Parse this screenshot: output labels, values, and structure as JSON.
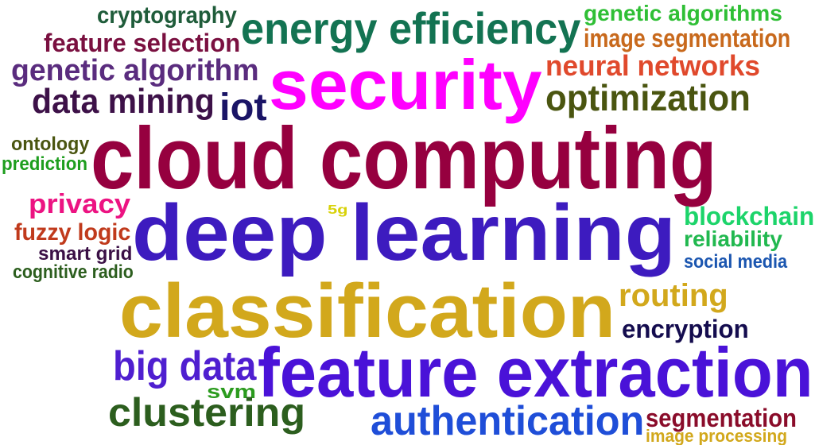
{
  "words": [
    {
      "text": "cryptography",
      "color": "#1f5c3a"
    },
    {
      "text": "energy efficiency",
      "color": "#137352"
    },
    {
      "text": "genetic algorithms",
      "color": "#2fbf35"
    },
    {
      "text": "feature selection",
      "color": "#7a1040"
    },
    {
      "text": "image segmentation",
      "color": "#c8691c"
    },
    {
      "text": "genetic algorithm",
      "color": "#5a2c7e"
    },
    {
      "text": "security",
      "color": "#ff00ff"
    },
    {
      "text": "neural networks",
      "color": "#e0492c"
    },
    {
      "text": "data mining",
      "color": "#3d1148"
    },
    {
      "text": "iot",
      "color": "#1a1466"
    },
    {
      "text": "optimization",
      "color": "#4a5510"
    },
    {
      "text": "ontology",
      "color": "#4a5510"
    },
    {
      "text": "cloud computing",
      "color": "#96003f"
    },
    {
      "text": "prediction",
      "color": "#1e9e1e"
    },
    {
      "text": "privacy",
      "color": "#ec1382"
    },
    {
      "text": "5g",
      "color": "#d8d20a"
    },
    {
      "text": "deep learning",
      "color": "#3d1bbf"
    },
    {
      "text": "blockchain",
      "color": "#1cd46a"
    },
    {
      "text": "fuzzy logic",
      "color": "#c03a1c"
    },
    {
      "text": "reliability",
      "color": "#21b84f"
    },
    {
      "text": "smart grid",
      "color": "#3b1046"
    },
    {
      "text": "social media",
      "color": "#1b56b0"
    },
    {
      "text": "cognitive radio",
      "color": "#2c5e1e"
    },
    {
      "text": "classification",
      "color": "#d2a81c"
    },
    {
      "text": "routing",
      "color": "#d2a81c"
    },
    {
      "text": "encryption",
      "color": "#140c4e"
    },
    {
      "text": "big data",
      "color": "#4f1fd0"
    },
    {
      "text": "feature extraction",
      "color": "#4a12d8"
    },
    {
      "text": "svm",
      "color": "#2b9b1e"
    },
    {
      "text": "clustering",
      "color": "#2c5e1e"
    },
    {
      "text": "authentication",
      "color": "#1f4ed8"
    },
    {
      "text": "segmentation",
      "color": "#8a0c2a"
    },
    {
      "text": "image processing",
      "color": "#d2a81c"
    }
  ]
}
